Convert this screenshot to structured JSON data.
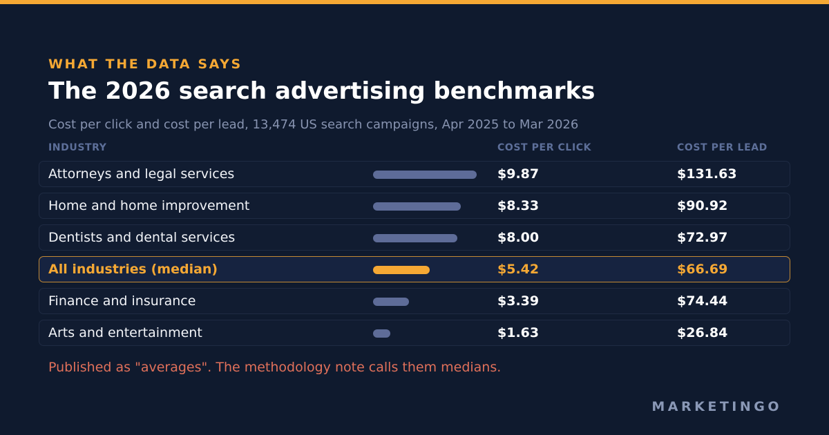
{
  "eyebrow": "WHAT THE DATA SAYS",
  "title": "The 2026 search advertising benchmarks",
  "subtitle": "Cost per click and cost per lead, 13,474 US search campaigns, Apr 2025 to Mar 2026",
  "columns": {
    "industry": "INDUSTRY",
    "cpc": "COST PER CLICK",
    "cpl": "COST PER LEAD"
  },
  "note": "Published as \"averages\". The methodology note calls them medians.",
  "brand": "MARKETINGO",
  "colors": {
    "accent": "#f5a834",
    "bar": "#5e6c98",
    "note": "#e0705a",
    "background": "#0f1a2e"
  },
  "chart_data": {
    "type": "table",
    "bar_max": 9.87,
    "rows": [
      {
        "industry": "Attorneys and legal services",
        "cpc_value": 9.87,
        "cpc": "$9.87",
        "cpl": "$131.63",
        "highlight": false
      },
      {
        "industry": "Home and home improvement",
        "cpc_value": 8.33,
        "cpc": "$8.33",
        "cpl": "$90.92",
        "highlight": false
      },
      {
        "industry": "Dentists and dental services",
        "cpc_value": 8.0,
        "cpc": "$8.00",
        "cpl": "$72.97",
        "highlight": false
      },
      {
        "industry": "All industries (median)",
        "cpc_value": 5.42,
        "cpc": "$5.42",
        "cpl": "$66.69",
        "highlight": true
      },
      {
        "industry": "Finance and insurance",
        "cpc_value": 3.39,
        "cpc": "$3.39",
        "cpl": "$74.44",
        "highlight": false
      },
      {
        "industry": "Arts and entertainment",
        "cpc_value": 1.63,
        "cpc": "$1.63",
        "cpl": "$26.84",
        "highlight": false
      }
    ]
  }
}
